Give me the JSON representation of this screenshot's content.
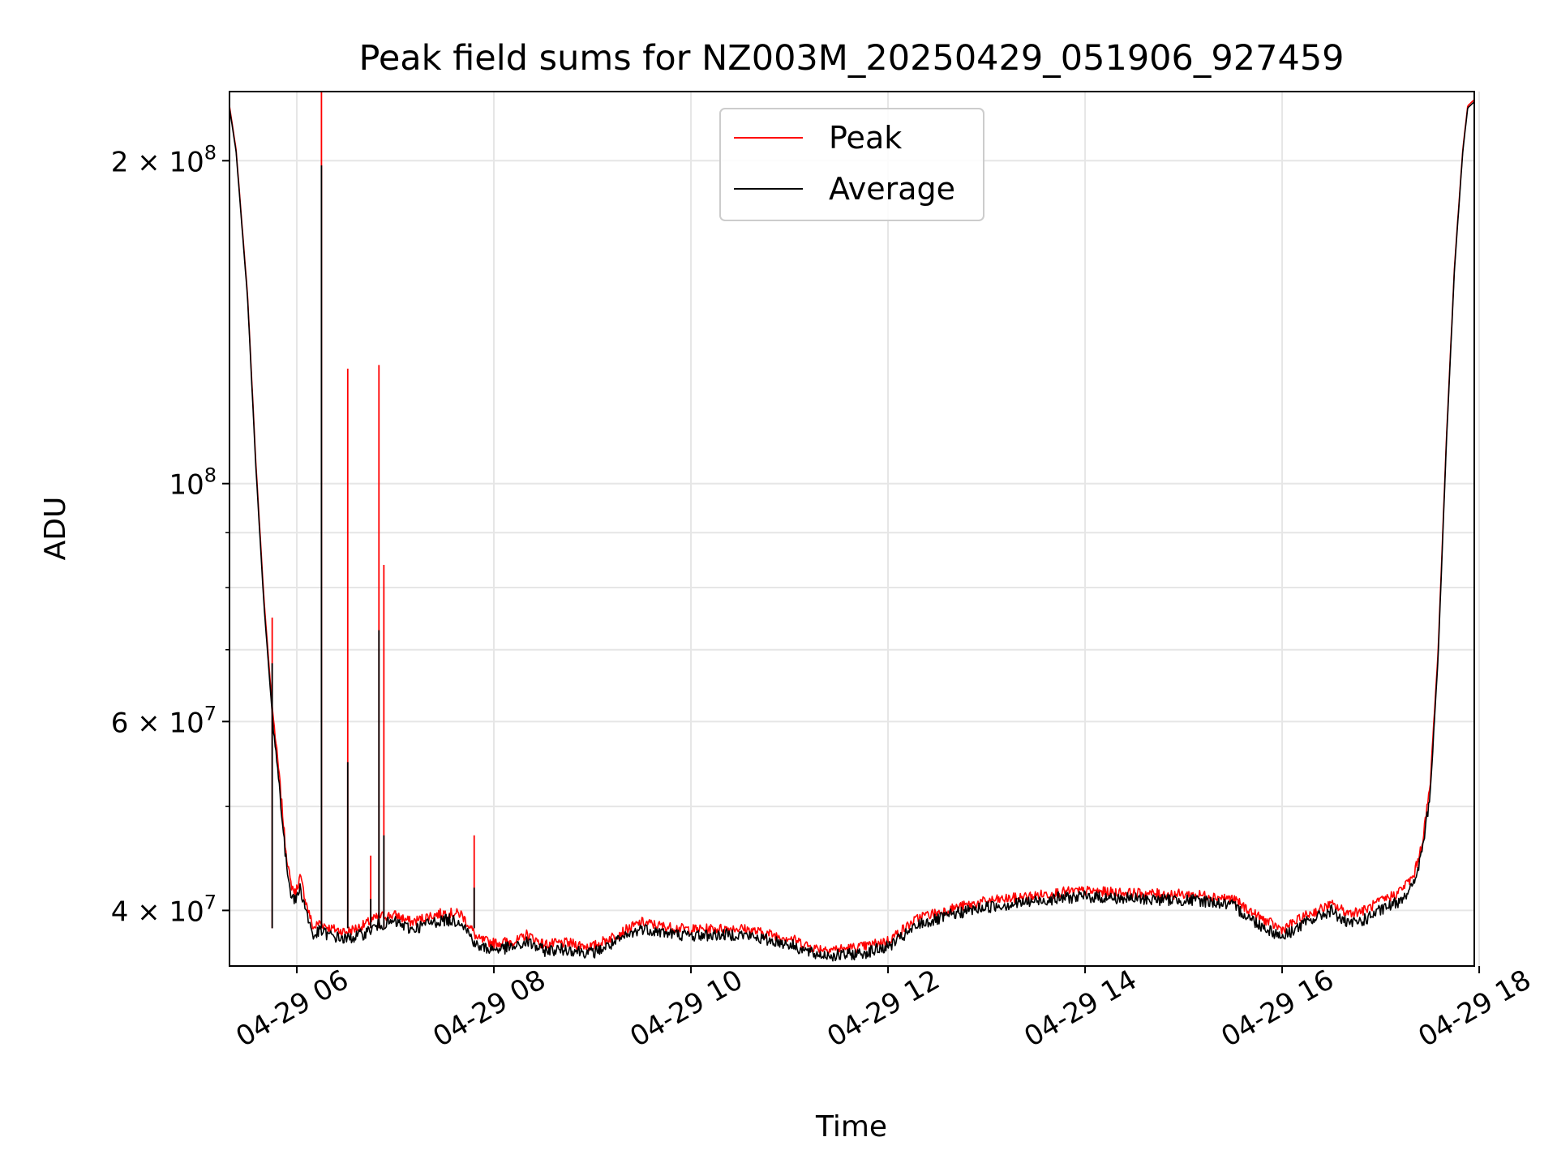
{
  "chart_data": {
    "type": "line",
    "title": "Peak field sums for NZ003M_20250429_051906_927459",
    "xlabel": "Time",
    "ylabel": "ADU",
    "xscale": "time",
    "yscale": "log",
    "xlim": [
      "2025-04-29 05:19",
      "2025-04-29 17:57"
    ],
    "ylim": [
      35500000,
      232000000
    ],
    "grid": true,
    "legend_position": "upper-center",
    "x_ticks": [
      "04-29 06",
      "04-29 08",
      "04-29 10",
      "04-29 12",
      "04-29 14",
      "04-29 16",
      "04-29 18"
    ],
    "y_ticks": [
      {
        "label": "4 × 10",
        "exp": "7",
        "value": 40000000
      },
      {
        "label": "6 × 10",
        "exp": "7",
        "value": 60000000
      },
      {
        "label": "10",
        "exp": "8",
        "value": 100000000
      },
      {
        "label": "2 × 10",
        "exp": "8",
        "value": 200000000
      }
    ],
    "y_minor_ticks": [
      50000000,
      70000000,
      80000000,
      90000000,
      300000000
    ],
    "colors": {
      "peak": "#ff0000",
      "average": "#000000"
    },
    "series": [
      {
        "name": "Peak",
        "x": [
          "05:19",
          "05:23",
          "05:30",
          "05:35",
          "05:40",
          "05:45",
          "05:50",
          "05:53",
          "05:56",
          "05:59",
          "06:02",
          "06:06",
          "06:10",
          "06:14",
          "06:20",
          "06:30",
          "06:40",
          "06:50",
          "07:00",
          "07:10",
          "07:20",
          "07:30",
          "07:40",
          "07:47",
          "07:50",
          "08:00",
          "08:15",
          "08:20",
          "08:30",
          "08:45",
          "09:00",
          "09:15",
          "09:30",
          "09:45",
          "10:00",
          "10:30",
          "11:00",
          "11:15",
          "11:30",
          "11:45",
          "12:00",
          "12:10",
          "12:20",
          "12:30",
          "12:40",
          "13:00",
          "13:30",
          "13:45",
          "14:00",
          "14:30",
          "15:00",
          "15:15",
          "15:30",
          "15:45",
          "16:00",
          "16:15",
          "16:30",
          "16:40",
          "16:50",
          "17:00",
          "17:10",
          "17:20",
          "17:25",
          "17:30",
          "17:35",
          "17:40",
          "17:45",
          "17:50",
          "17:53",
          "17:57"
        ],
        "y": [
          225000000,
          205000000,
          150000000,
          105000000,
          78000000,
          62000000,
          52000000,
          46000000,
          42500000,
          41500000,
          43000000,
          40500000,
          38500000,
          39000000,
          38500000,
          38200000,
          38700000,
          39500000,
          39600000,
          39000000,
          39500000,
          39800000,
          39700000,
          38300000,
          37600000,
          37300000,
          37500000,
          38000000,
          37200000,
          37300000,
          37000000,
          38000000,
          39000000,
          38600000,
          38400000,
          38500000,
          37700000,
          36900000,
          36800000,
          37000000,
          37500000,
          38500000,
          39500000,
          39800000,
          40200000,
          40800000,
          41300000,
          41600000,
          41700000,
          41500000,
          41400000,
          41300000,
          41000000,
          39500000,
          38400000,
          39600000,
          40500000,
          39800000,
          40000000,
          40800000,
          41500000,
          43000000,
          46000000,
          52000000,
          70000000,
          110000000,
          160000000,
          205000000,
          225000000,
          228000000
        ]
      },
      {
        "name": "Average",
        "x": [
          "05:19",
          "05:23",
          "05:30",
          "05:35",
          "05:40",
          "05:45",
          "05:50",
          "05:53",
          "05:56",
          "05:59",
          "06:02",
          "06:06",
          "06:10",
          "06:14",
          "06:20",
          "06:30",
          "06:40",
          "06:50",
          "07:00",
          "07:10",
          "07:20",
          "07:30",
          "07:40",
          "07:47",
          "07:50",
          "08:00",
          "08:15",
          "08:20",
          "08:30",
          "08:45",
          "09:00",
          "09:15",
          "09:30",
          "09:45",
          "10:00",
          "10:30",
          "11:00",
          "11:15",
          "11:30",
          "11:45",
          "12:00",
          "12:10",
          "12:20",
          "12:30",
          "12:40",
          "13:00",
          "13:30",
          "13:45",
          "14:00",
          "14:30",
          "15:00",
          "15:15",
          "15:30",
          "15:45",
          "16:00",
          "16:15",
          "16:30",
          "16:40",
          "16:50",
          "17:00",
          "17:10",
          "17:20",
          "17:25",
          "17:30",
          "17:35",
          "17:40",
          "17:45",
          "17:50",
          "17:53",
          "17:57"
        ],
        "y": [
          224000000,
          204000000,
          149000000,
          104000000,
          77000000,
          61000000,
          51000000,
          45000000,
          41800000,
          40800000,
          42000000,
          39800000,
          37800000,
          38300000,
          37900000,
          37600000,
          38000000,
          38800000,
          39000000,
          38400000,
          38900000,
          39200000,
          39100000,
          37600000,
          37000000,
          36800000,
          37000000,
          37400000,
          36700000,
          36800000,
          36500000,
          37400000,
          38500000,
          38100000,
          37900000,
          38000000,
          37200000,
          36400000,
          36300000,
          36500000,
          37000000,
          37900000,
          38900000,
          39200000,
          39700000,
          40300000,
          40800000,
          41100000,
          41200000,
          41000000,
          40900000,
          40800000,
          40400000,
          38900000,
          37800000,
          39000000,
          40000000,
          38800000,
          39200000,
          40000000,
          40700000,
          42200000,
          45200000,
          51000000,
          69000000,
          109000000,
          159000000,
          204000000,
          224000000,
          227000000
        ]
      }
    ],
    "spikes": [
      {
        "time": "05:45",
        "peak": 75000000,
        "average": 68000000
      },
      {
        "time": "06:15",
        "peak": 232000000,
        "average": 198000000
      },
      {
        "time": "06:31",
        "peak": 128000000,
        "average": 55000000
      },
      {
        "time": "06:45",
        "peak": 45000000,
        "average": 41000000
      },
      {
        "time": "06:50",
        "peak": 129000000,
        "average": 73000000
      },
      {
        "time": "06:53",
        "peak": 84000000,
        "average": 47000000
      },
      {
        "time": "07:48",
        "peak": 47000000,
        "average": 42000000
      }
    ]
  },
  "legend": {
    "items": [
      {
        "label": "Peak",
        "color": "#ff0000"
      },
      {
        "label": "Average",
        "color": "#000000"
      }
    ]
  }
}
